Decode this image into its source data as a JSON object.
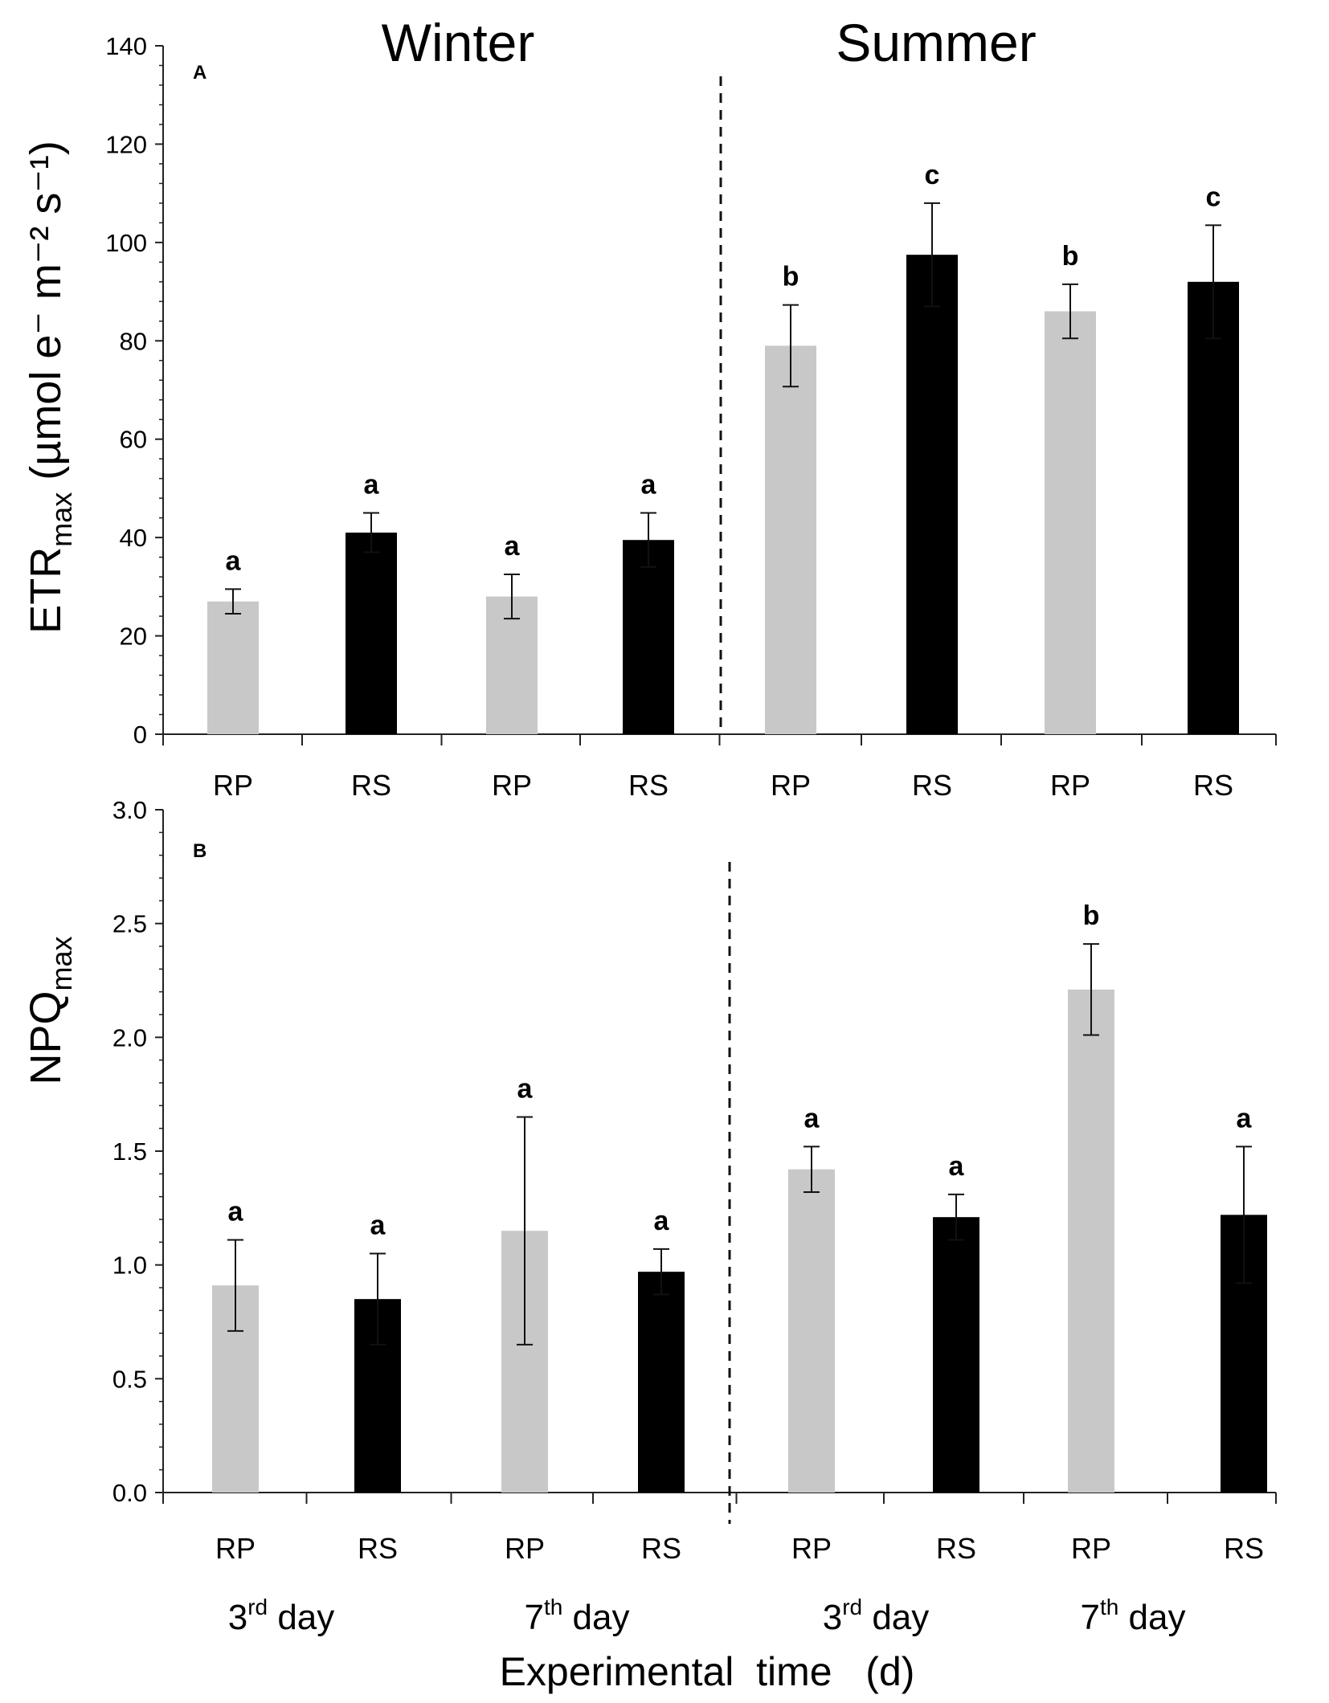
{
  "season_labels": [
    "Winter",
    "Summer"
  ],
  "day_labels": [
    {
      "base": "3",
      "sup": "rd",
      "rest": " day"
    },
    {
      "base": "7",
      "sup": "th",
      "rest": " day"
    },
    {
      "base": "3",
      "sup": "rd",
      "rest": " day"
    },
    {
      "base": "7",
      "sup": "th",
      "rest": " day"
    }
  ],
  "xlabel": "Experimental  time   (d)",
  "colors": {
    "RP": "#c8c8c8",
    "RS": "#000000",
    "axis": "#222222"
  },
  "chart_data": [
    {
      "type": "bar",
      "panel": "A",
      "ylabel": {
        "main": "ETR",
        "sub": "max",
        "unit": "(µmol e⁻ m⁻² s⁻¹)"
      },
      "ylim": [
        0,
        140
      ],
      "yticks": [
        0,
        20,
        40,
        60,
        80,
        100,
        120,
        140
      ],
      "ytick_labels": [
        "0",
        "20",
        "40",
        "60",
        "80",
        "100",
        "120",
        "140"
      ],
      "categories": [
        "RP",
        "RS",
        "RP",
        "RS",
        "RP",
        "RS",
        "RP",
        "RS"
      ],
      "groups": [
        "Winter 3rd day",
        "Winter 7th day",
        "Summer 3rd day",
        "Summer 7th day"
      ],
      "values": [
        27,
        41,
        28,
        39.5,
        79,
        97.5,
        86,
        92
      ],
      "errors": [
        2.5,
        4,
        4.5,
        5.5,
        8.3,
        10.5,
        5.5,
        11.5
      ],
      "significance": [
        "a",
        "a",
        "a",
        "a",
        "b",
        "c",
        "b",
        "c"
      ],
      "divider_between": [
        "Winter",
        "Summer"
      ]
    },
    {
      "type": "bar",
      "panel": "B",
      "ylabel": {
        "main": "NPQ",
        "sub": "max"
      },
      "ylim": [
        0,
        3.0
      ],
      "yticks": [
        0,
        0.5,
        1.0,
        1.5,
        2.0,
        2.5,
        3.0
      ],
      "ytick_labels": [
        "0.0",
        "0.5",
        "1.0",
        "1.5",
        "2.0",
        "2.5",
        "3.0"
      ],
      "categories": [
        "RP",
        "RS",
        "RP",
        "RS",
        "RP",
        "RS",
        "RP",
        "RS"
      ],
      "groups": [
        "Winter 3rd day",
        "Winter 7th day",
        "Summer 3rd day",
        "Summer 7th day"
      ],
      "values": [
        0.91,
        0.85,
        1.15,
        0.97,
        1.42,
        1.21,
        2.21,
        1.22
      ],
      "errors": [
        0.2,
        0.2,
        0.5,
        0.1,
        0.1,
        0.1,
        0.2,
        0.3
      ],
      "significance": [
        "a",
        "a",
        "a",
        "a",
        "a",
        "a",
        "b",
        "a"
      ],
      "divider_between": [
        "Winter",
        "Summer"
      ]
    }
  ]
}
